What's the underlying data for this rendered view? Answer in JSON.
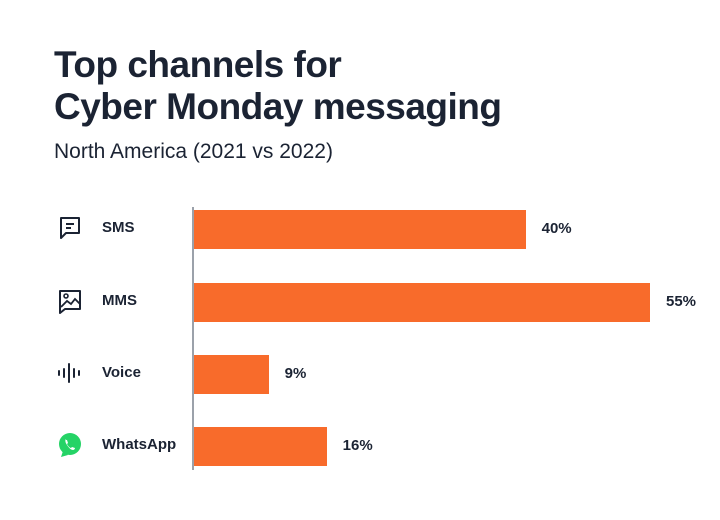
{
  "title_line1": "Top channels for",
  "title_line2": "Cyber Monday messaging",
  "subtitle": "North America (2021 vs 2022)",
  "chart_data": {
    "type": "bar",
    "orientation": "horizontal",
    "title": "Top channels for Cyber Monday messaging",
    "subtitle": "North America (2021 vs 2022)",
    "categories": [
      "SMS",
      "MMS",
      "Voice",
      "WhatsApp"
    ],
    "values": [
      40,
      55,
      9,
      16
    ],
    "labels": [
      "40%",
      "55%",
      "9%",
      "16%"
    ],
    "icons": [
      "message-icon",
      "image-icon",
      "voice-waveform-icon",
      "whatsapp-icon"
    ],
    "bar_color": "#F86B2B",
    "grid": false,
    "legend": "none",
    "xlim": [
      0,
      55
    ]
  }
}
